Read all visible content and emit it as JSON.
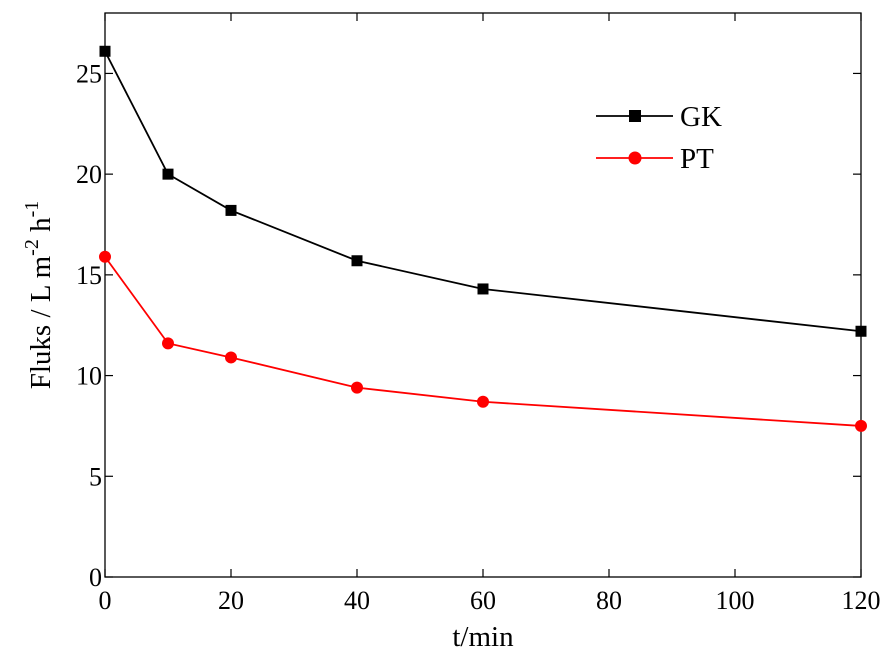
{
  "chart_data": {
    "type": "line",
    "title": "",
    "xlabel": "t/min",
    "ylabel": "Fluks / L m-2 h-1",
    "ylabel_parts": {
      "main": "Fluks / L m",
      "exp1": "-2",
      "mid": " h",
      "exp2": "-1"
    },
    "x": [
      0,
      10,
      20,
      40,
      60,
      120
    ],
    "xlim": [
      0,
      120
    ],
    "ylim": [
      0,
      28
    ],
    "x_ticks": [
      0,
      20,
      40,
      60,
      80,
      100,
      120
    ],
    "y_ticks": [
      0,
      5,
      10,
      15,
      20,
      25
    ],
    "grid": false,
    "legend_position": "top-right",
    "series": [
      {
        "name": "GK",
        "color": "#000000",
        "marker": "square",
        "values": [
          26.1,
          20.0,
          18.2,
          15.7,
          14.3,
          12.2
        ]
      },
      {
        "name": "PT",
        "color": "#ff0000",
        "marker": "circle",
        "values": [
          15.9,
          11.6,
          10.9,
          9.4,
          8.7,
          7.5
        ]
      }
    ]
  }
}
